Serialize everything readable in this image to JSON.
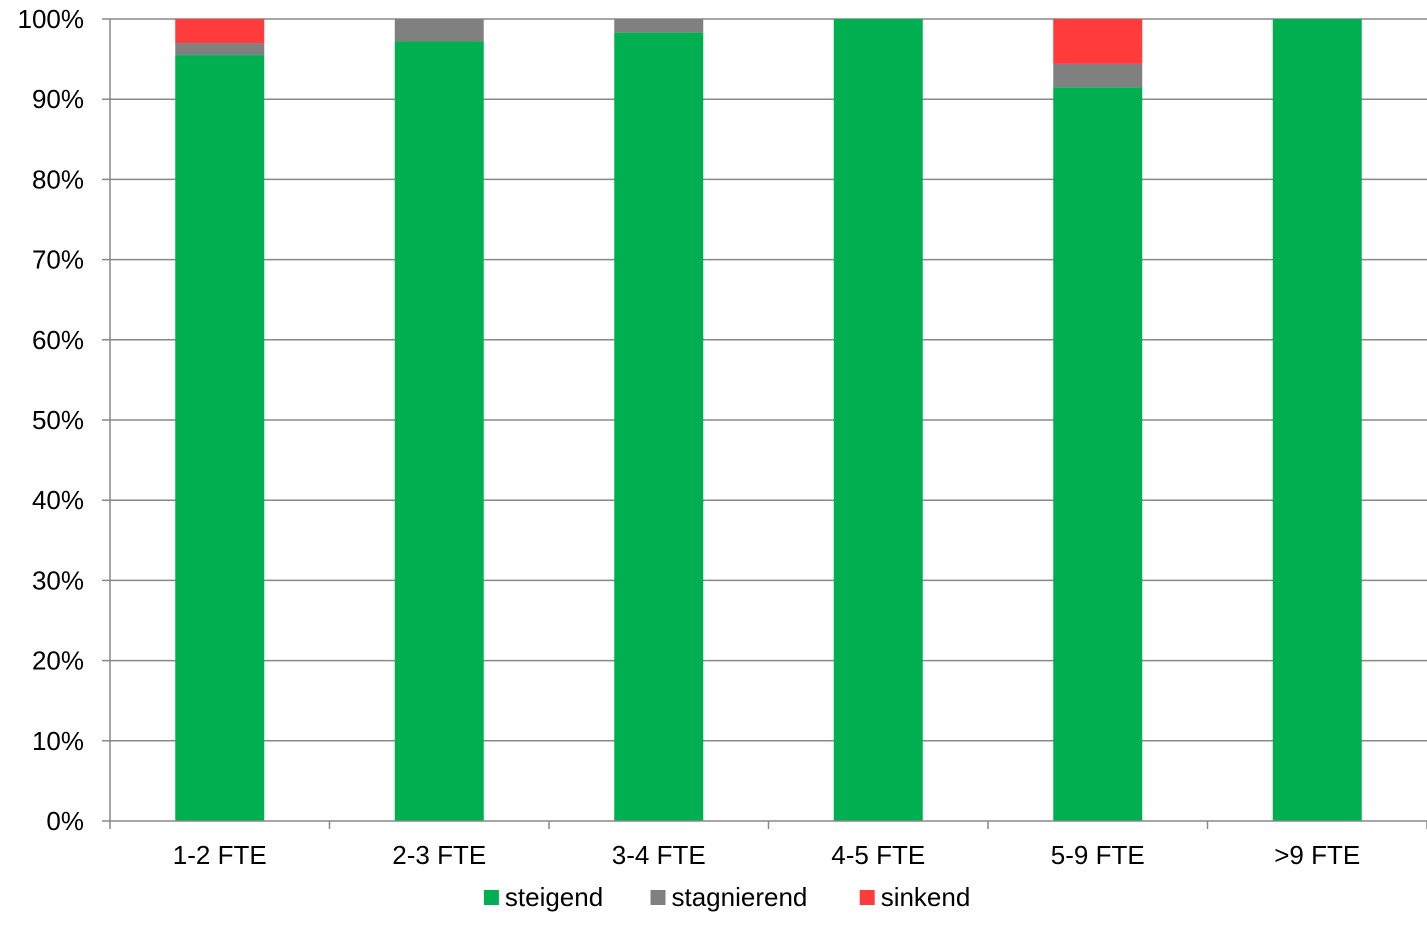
{
  "chart_data": {
    "type": "bar",
    "stacked": true,
    "categories": [
      "1-2 FTE",
      "2-3 FTE",
      "3-4 FTE",
      "4-5 FTE",
      "5-9 FTE",
      ">9 FTE"
    ],
    "series": [
      {
        "name": "steigend",
        "color": "#00AF50",
        "values": [
          95.5,
          97.2,
          98.3,
          100,
          91.5,
          100
        ]
      },
      {
        "name": "stagnierend",
        "color": "#808080",
        "values": [
          1.5,
          2.8,
          1.7,
          0,
          2.9,
          0
        ]
      },
      {
        "name": "sinkend",
        "color": "#FF3B3B",
        "values": [
          3.0,
          0,
          0,
          0,
          5.6,
          0
        ]
      }
    ],
    "y_ticks": [
      "0%",
      "10%",
      "20%",
      "30%",
      "40%",
      "50%",
      "60%",
      "70%",
      "80%",
      "90%",
      "100%"
    ],
    "ylim": [
      0,
      100
    ],
    "grid": true,
    "legend": "bottom-center",
    "title": "",
    "xlabel": "",
    "ylabel": ""
  }
}
